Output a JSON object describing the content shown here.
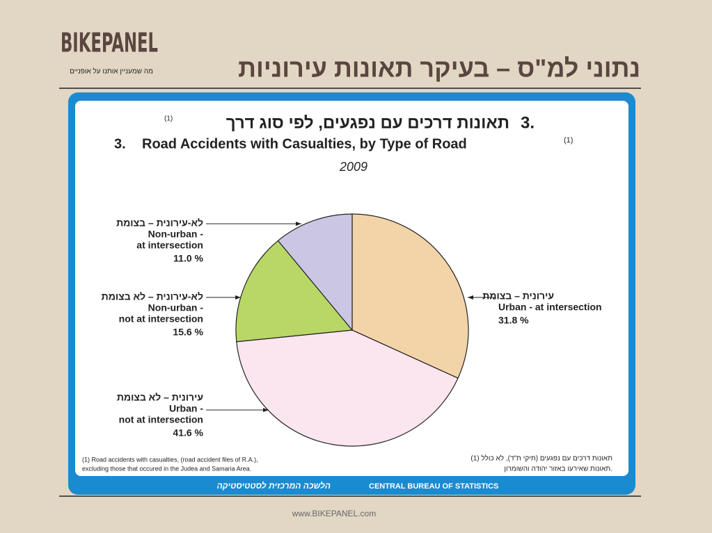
{
  "header": {
    "logo": "BIKEPANEL",
    "tagline": "מה שמעניין אותנו על אופניים",
    "title": "נתוני למ\"ס – בעיקר תאונות עירוניות"
  },
  "chart_data": {
    "type": "pie",
    "title_number": "3.",
    "title_he": "תאונות דרכים עם נפגעים, לפי סוג דרך",
    "title_en": "Road Accidents  with Casualties, by Type of Road",
    "title_note": "(1)",
    "subtitle": "2009",
    "categories": [
      [
        "עירונית – בצומת",
        "Urban - at intersection"
      ],
      [
        "עירונית – לא בצומת",
        "Urban -",
        "not at intersection"
      ],
      [
        "לא-עירונית – לא בצומת",
        "Non-urban -",
        "not at intersection"
      ],
      [
        "לא-עירונית – בצומת",
        "Non-urban -",
        "at intersection"
      ]
    ],
    "values": [
      31.8,
      41.6,
      15.6,
      11.0
    ],
    "value_labels": [
      "31.8  %",
      "41.6  %",
      "15.6  %",
      "11.0  %"
    ],
    "colors": [
      "#f3d4a9",
      "#fbe5ef",
      "#b9d766",
      "#cbc6e4"
    ],
    "notes_en": [
      "(1) Road accidents with casualties, (road accident files of R.A.),",
      "excluding those that occured in the Judea and Samaria Area."
    ],
    "notes_he": [
      "(1) תאונות דרכים עם נפגעים (תיקי ת\"ד), לא כולל",
      "תאונות שאירעו באזור יהודה והשומרון."
    ]
  },
  "source": {
    "he": "הלשכה המרכזית לסטטיסטיקה",
    "en": "CENTRAL BUREAU OF STATISTICS"
  },
  "footer": "www.BIKEPANEL.com"
}
